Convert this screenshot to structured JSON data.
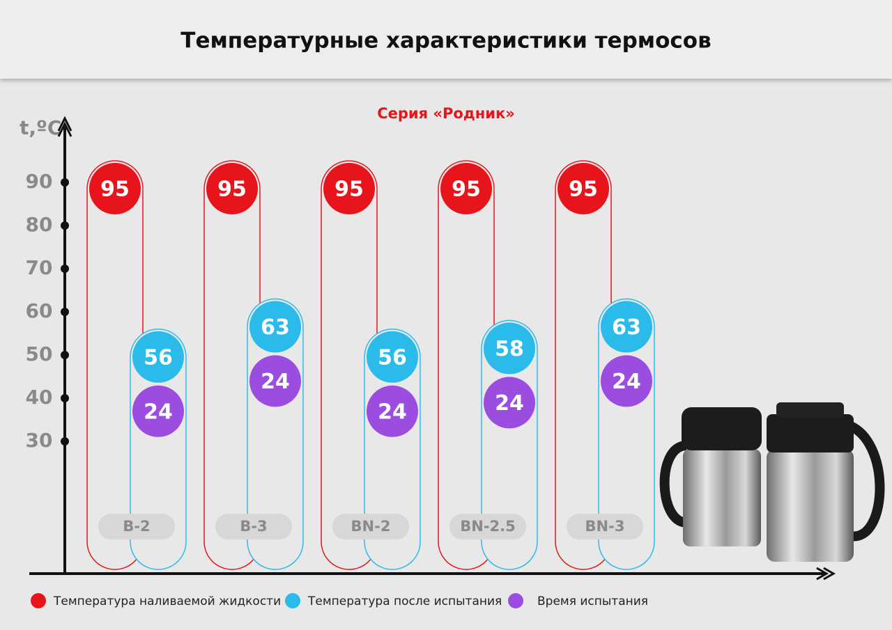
{
  "chart_data": {
    "type": "capsule",
    "title": "Температурные характеристики термосов",
    "subtitle": "Серия «Родник»",
    "y_label": "t,ºC",
    "categories": [
      "B-2",
      "B-3",
      "BN-2",
      "BN-2.5",
      "BN-3"
    ],
    "series": [
      {
        "name": "Температура наливаемой жидкости",
        "color": "#e8141c",
        "values": [
          95,
          95,
          95,
          95,
          95
        ]
      },
      {
        "name": "Температура после испытания",
        "color": "#2bbbea",
        "values": [
          56,
          63,
          56,
          58,
          63
        ]
      },
      {
        "name": "Время испытания",
        "color": "#9b4de0",
        "values": [
          24,
          24,
          24,
          24,
          24
        ]
      }
    ],
    "ylim": [
      0,
      103
    ],
    "yticks": [
      30,
      40,
      50,
      60,
      70,
      80,
      90
    ]
  }
}
